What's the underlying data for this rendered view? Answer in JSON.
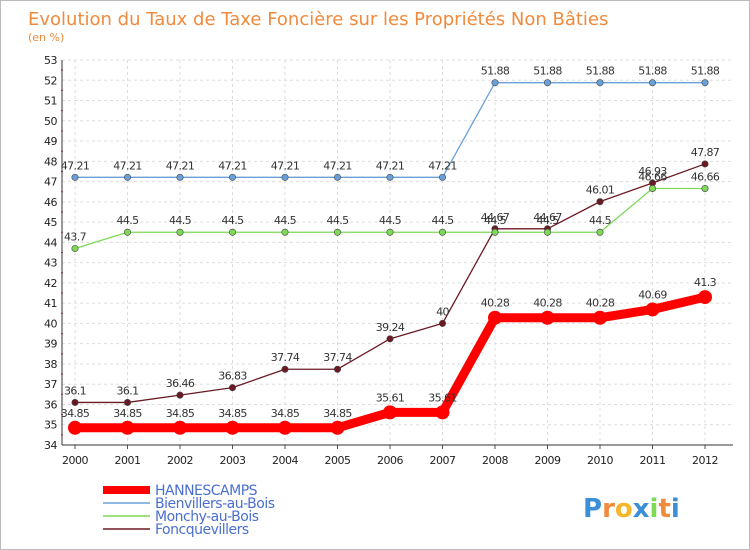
{
  "chart_data": {
    "type": "line",
    "title": "Evolution du Taux de Taxe Foncière sur les Propriétés Non Bâties",
    "subtitle": "(en %)",
    "xlabel": "",
    "ylabel": "",
    "x": [
      "2000",
      "2001",
      "2002",
      "2003",
      "2004",
      "2005",
      "2006",
      "2007",
      "2008",
      "2009",
      "2010",
      "2011",
      "2012"
    ],
    "ylim": [
      34,
      53
    ],
    "yticks": [
      "34",
      "35",
      "36",
      "37",
      "38",
      "39",
      "40",
      "41",
      "42",
      "43",
      "44",
      "45",
      "46",
      "47",
      "48",
      "49",
      "50",
      "51",
      "52",
      "53"
    ],
    "grid": true,
    "legend_position": "bottom-left",
    "series": [
      {
        "name": "Foncquevillers",
        "color": "#6b1a24",
        "values": [
          36.1,
          36.1,
          36.46,
          36.83,
          37.74,
          37.74,
          39.24,
          40,
          44.67,
          44.67,
          46.01,
          46.93,
          47.87
        ],
        "labels": [
          "36.1",
          "36.1",
          "36.46",
          "36.83",
          "37.74",
          "37.74",
          "39.24",
          "40",
          "44.67",
          "44.67",
          "46.01",
          "46.93",
          "47.87"
        ]
      },
      {
        "name": "Monchy-au-Bois",
        "color": "#7ed957",
        "values": [
          43.7,
          44.5,
          44.5,
          44.5,
          44.5,
          44.5,
          44.5,
          44.5,
          44.5,
          44.5,
          44.5,
          46.66,
          46.66
        ],
        "labels": [
          "43.7",
          "44.5",
          "44.5",
          "44.5",
          "44.5",
          "44.5",
          "44.5",
          "44.5",
          "44.5",
          "44.5",
          "44.5",
          "46.66",
          "46.66"
        ]
      },
      {
        "name": "Bienvillers-au-Bois",
        "color": "#6aa0d8",
        "values": [
          47.21,
          47.21,
          47.21,
          47.21,
          47.21,
          47.21,
          47.21,
          47.21,
          51.88,
          51.88,
          51.88,
          51.88,
          51.88
        ],
        "labels": [
          "47.21",
          "47.21",
          "47.21",
          "47.21",
          "47.21",
          "47.21",
          "47.21",
          "47.21",
          "51.88",
          "51.88",
          "51.88",
          "51.88",
          "51.88"
        ]
      },
      {
        "name": "HANNESCAMPS",
        "color": "#ff0000",
        "values": [
          34.85,
          34.85,
          34.85,
          34.85,
          34.85,
          34.85,
          35.61,
          35.61,
          40.28,
          40.28,
          40.28,
          40.69,
          41.3
        ],
        "labels": [
          "34.85",
          "34.85",
          "34.85",
          "34.85",
          "34.85",
          "34.85",
          "35.61",
          "35.61",
          "40.28",
          "40.28",
          "40.28",
          "40.69",
          "41.3"
        ]
      }
    ],
    "legend": [
      "HANNESCAMPS",
      "Bienvillers-au-Bois",
      "Monchy-au-Bois",
      "Foncquevillers"
    ]
  },
  "brand": {
    "name": "Proxiti",
    "letters": [
      "P",
      "r",
      "o",
      "x",
      "i",
      "t",
      "i"
    ],
    "colors": [
      "#3a8fd8",
      "#f08a3c",
      "#f7b52c",
      "#3a8fd8",
      "#7ed957",
      "#f08a3c",
      "#3a8fd8"
    ]
  }
}
